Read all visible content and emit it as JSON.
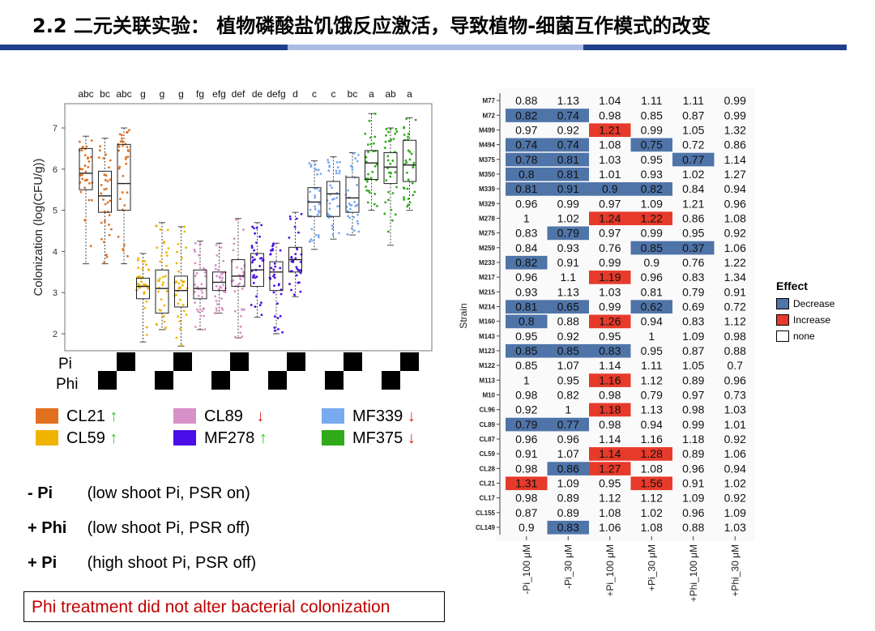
{
  "slide": {
    "title": "2.2 二元关联实验： 植物磷酸盐饥饿反应激活，导致植物-细菌互作模式的改变",
    "note": "Phi treatment did not alter bacterial colonization"
  },
  "treatments": [
    {
      "code": "- Pi",
      "desc": "(low shoot Pi, PSR on)"
    },
    {
      "code": "+ Phi",
      "desc": "(low shoot Pi, PSR off)"
    },
    {
      "code": "+ Pi",
      "desc": "(high shoot Pi, PSR off)"
    }
  ],
  "strain_legend": [
    {
      "name": "CL21",
      "color": "#e07020",
      "arrow": "↑",
      "arrow_color": "#22cc22"
    },
    {
      "name": "CL59",
      "color": "#f0b400",
      "arrow": "↑",
      "arrow_color": "#22cc22"
    },
    {
      "name": "CL89",
      "color": "#d890c8",
      "arrow": "↓",
      "arrow_color": "#e02020"
    },
    {
      "name": "MF278",
      "color": "#4b0ee8",
      "arrow": "↑",
      "arrow_color": "#22cc22"
    },
    {
      "name": "MF339",
      "color": "#78aaf0",
      "arrow": "↓",
      "arrow_color": "#e02020"
    },
    {
      "name": "MF375",
      "color": "#30aa18",
      "arrow": "↓",
      "arrow_color": "#e02020"
    }
  ],
  "chart_data": [
    {
      "type": "box",
      "ylabel": "Colonization (log(CFU/g))",
      "ylim": [
        1.5,
        7.6
      ],
      "yticks": [
        2,
        3,
        4,
        5,
        6,
        7
      ],
      "letters": [
        "abc",
        "bc",
        "abc",
        "g",
        "g",
        "g",
        "fg",
        "efg",
        "def",
        "de",
        "defg",
        "d",
        "c",
        "c",
        "bc",
        "a",
        "ab",
        "a"
      ],
      "group_colors": [
        "#e07020",
        "#f0b400",
        "#d890c8",
        "#4b0ee8",
        "#78aaf0",
        "#30aa18"
      ],
      "boxes": [
        {
          "min": 3.7,
          "q1": 5.5,
          "median": 5.9,
          "q3": 6.5,
          "max": 6.8
        },
        {
          "min": 3.7,
          "q1": 4.95,
          "median": 5.35,
          "q3": 5.95,
          "max": 6.75
        },
        {
          "min": 3.7,
          "q1": 5.0,
          "median": 5.65,
          "q3": 6.6,
          "max": 7.0
        },
        {
          "min": 1.8,
          "q1": 2.85,
          "median": 3.15,
          "q3": 3.35,
          "max": 3.95
        },
        {
          "min": 2.1,
          "q1": 2.5,
          "median": 3.1,
          "q3": 3.55,
          "max": 4.7
        },
        {
          "min": 1.7,
          "q1": 2.65,
          "median": 3.05,
          "q3": 3.4,
          "max": 4.6
        },
        {
          "min": 2.1,
          "q1": 2.85,
          "median": 3.1,
          "q3": 3.55,
          "max": 4.25
        },
        {
          "min": 2.5,
          "q1": 3.05,
          "median": 3.25,
          "q3": 3.5,
          "max": 4.2
        },
        {
          "min": 1.9,
          "q1": 3.15,
          "median": 3.4,
          "q3": 3.8,
          "max": 4.8
        },
        {
          "min": 2.4,
          "q1": 3.15,
          "median": 3.55,
          "q3": 3.95,
          "max": 4.7
        },
        {
          "min": 2.0,
          "q1": 3.05,
          "median": 3.5,
          "q3": 3.75,
          "max": 4.2
        },
        {
          "min": 2.9,
          "q1": 3.5,
          "median": 3.8,
          "q3": 4.1,
          "max": 4.95
        },
        {
          "min": 4.05,
          "q1": 4.85,
          "median": 5.2,
          "q3": 5.55,
          "max": 6.2
        },
        {
          "min": 4.3,
          "q1": 4.85,
          "median": 5.4,
          "q3": 5.7,
          "max": 6.3
        },
        {
          "min": 4.4,
          "q1": 4.95,
          "median": 5.3,
          "q3": 5.8,
          "max": 6.4
        },
        {
          "min": 5.0,
          "q1": 5.75,
          "median": 6.15,
          "q3": 6.45,
          "max": 7.35
        },
        {
          "min": 4.15,
          "q1": 5.65,
          "median": 6.05,
          "q3": 6.4,
          "max": 7.0
        },
        {
          "min": 5.0,
          "q1": 5.7,
          "median": 6.1,
          "q3": 6.7,
          "max": 7.25
        }
      ],
      "condition_rows": [
        "Pi",
        "Phi"
      ]
    },
    {
      "type": "heatmap",
      "ylabel": "Strain",
      "columns": [
        "-Pi_100 μM",
        "-Pi_30 μM",
        "+Pi_100 μM",
        "+Pi_30 μM",
        "+Phi_100 μM",
        "+Phi_30 μM"
      ],
      "legend_title": "Effect",
      "categories": [
        {
          "key": "D",
          "label": "Decrease",
          "color": "#4f74a8"
        },
        {
          "key": "I",
          "label": "Increase",
          "color": "#e63a2a"
        },
        {
          "key": "N",
          "label": "none",
          "color": "#ffffff"
        }
      ],
      "rows": [
        {
          "strain": "M77",
          "values": [
            0.88,
            1.13,
            1.04,
            1.11,
            1.11,
            0.99
          ],
          "effects": "NNNNNN"
        },
        {
          "strain": "M72",
          "values": [
            0.82,
            0.74,
            0.98,
            0.85,
            0.87,
            0.99
          ],
          "effects": "DDNNNN"
        },
        {
          "strain": "M499",
          "values": [
            0.97,
            0.92,
            1.21,
            0.99,
            1.05,
            1.32
          ],
          "effects": "NNINNN"
        },
        {
          "strain": "M494",
          "values": [
            0.74,
            0.74,
            1.08,
            0.75,
            0.72,
            0.86
          ],
          "effects": "DDNDNN"
        },
        {
          "strain": "M375",
          "values": [
            0.78,
            0.81,
            1.03,
            0.95,
            0.77,
            1.14
          ],
          "effects": "DDNNDN"
        },
        {
          "strain": "M350",
          "values": [
            0.8,
            0.81,
            1.01,
            0.93,
            1.02,
            1.27
          ],
          "effects": "DDNNNN"
        },
        {
          "strain": "M339",
          "values": [
            0.81,
            0.91,
            0.9,
            0.82,
            0.84,
            0.94
          ],
          "effects": "DDDDNN"
        },
        {
          "strain": "M329",
          "values": [
            0.96,
            0.99,
            0.97,
            1.09,
            1.21,
            0.96
          ],
          "effects": "NNNNNN"
        },
        {
          "strain": "M278",
          "values": [
            1,
            1.02,
            1.24,
            1.22,
            0.86,
            1.08
          ],
          "effects": "NNIINN"
        },
        {
          "strain": "M275",
          "values": [
            0.83,
            0.79,
            0.97,
            0.99,
            0.95,
            0.92
          ],
          "effects": "NDNNNN"
        },
        {
          "strain": "M259",
          "values": [
            0.84,
            0.93,
            0.76,
            0.85,
            0.37,
            1.06
          ],
          "effects": "NNNDDN"
        },
        {
          "strain": "M233",
          "values": [
            0.82,
            0.91,
            0.99,
            0.9,
            0.76,
            1.22
          ],
          "effects": "DNNNNN"
        },
        {
          "strain": "M217",
          "values": [
            0.96,
            1.1,
            1.19,
            0.96,
            0.83,
            1.34
          ],
          "effects": "NNINNN"
        },
        {
          "strain": "M215",
          "values": [
            0.93,
            1.13,
            1.03,
            0.81,
            0.79,
            0.91
          ],
          "effects": "NNNNNN"
        },
        {
          "strain": "M214",
          "values": [
            0.81,
            0.65,
            0.99,
            0.62,
            0.69,
            0.72
          ],
          "effects": "DDNDNN"
        },
        {
          "strain": "M160",
          "values": [
            0.8,
            0.88,
            1.26,
            0.94,
            0.83,
            1.12
          ],
          "effects": "DNINNN"
        },
        {
          "strain": "M143",
          "values": [
            0.95,
            0.92,
            0.95,
            1,
            1.09,
            0.98
          ],
          "effects": "NNNNNN"
        },
        {
          "strain": "M123",
          "values": [
            0.85,
            0.85,
            0.83,
            0.95,
            0.87,
            0.88
          ],
          "effects": "DDDNNN"
        },
        {
          "strain": "M122",
          "values": [
            0.85,
            1.07,
            1.14,
            1.11,
            1.05,
            0.7
          ],
          "effects": "NNNNNN"
        },
        {
          "strain": "M113",
          "values": [
            1,
            0.95,
            1.16,
            1.12,
            0.89,
            0.96
          ],
          "effects": "NNINNN"
        },
        {
          "strain": "M10",
          "values": [
            0.98,
            0.82,
            0.98,
            0.79,
            0.97,
            0.73
          ],
          "effects": "NNNNNN"
        },
        {
          "strain": "CL96",
          "values": [
            0.92,
            1,
            1.18,
            1.13,
            0.98,
            1.03
          ],
          "effects": "NNINNN"
        },
        {
          "strain": "CL89",
          "values": [
            0.79,
            0.77,
            0.98,
            0.94,
            0.99,
            1.01
          ],
          "effects": "DDNNNN"
        },
        {
          "strain": "CL87",
          "values": [
            0.96,
            0.96,
            1.14,
            1.16,
            1.18,
            0.92
          ],
          "effects": "NNNNNN"
        },
        {
          "strain": "CL59",
          "values": [
            0.91,
            1.07,
            1.14,
            1.28,
            0.89,
            1.06
          ],
          "effects": "NNIINN"
        },
        {
          "strain": "CL28",
          "values": [
            0.98,
            0.86,
            1.27,
            1.08,
            0.96,
            0.94
          ],
          "effects": "NDINNN"
        },
        {
          "strain": "CL21",
          "values": [
            1.31,
            1.09,
            0.95,
            1.56,
            0.91,
            1.02
          ],
          "effects": "INNINN"
        },
        {
          "strain": "CL17",
          "values": [
            0.98,
            0.89,
            1.12,
            1.12,
            1.09,
            0.92
          ],
          "effects": "NNNNNN"
        },
        {
          "strain": "CL155",
          "values": [
            0.87,
            0.89,
            1.08,
            1.02,
            0.96,
            1.09
          ],
          "effects": "NNNNNN"
        },
        {
          "strain": "CL149",
          "values": [
            0.9,
            0.83,
            1.06,
            1.08,
            0.88,
            1.03
          ],
          "effects": "NDNNNN"
        }
      ]
    }
  ]
}
